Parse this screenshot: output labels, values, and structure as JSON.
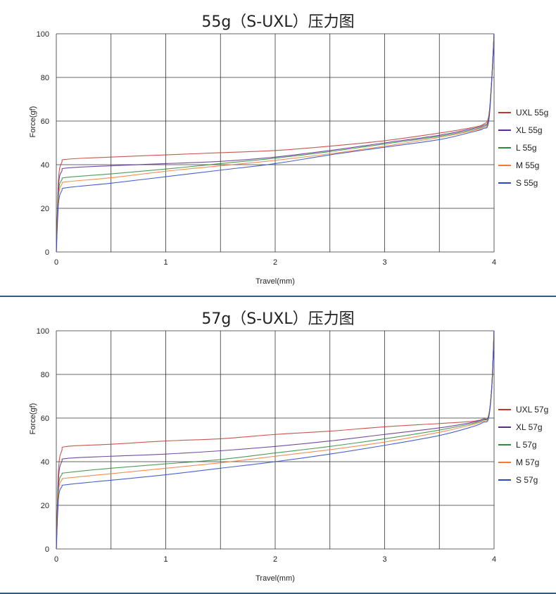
{
  "chart_data": [
    {
      "type": "line",
      "title": "55g（S-UXL）压力图",
      "xlabel": "Travel(mm)",
      "ylabel": "Force(gf)",
      "xlim": [
        0,
        4
      ],
      "ylim": [
        0,
        100
      ],
      "xticks": [
        "0",
        "1",
        "2",
        "3",
        "4"
      ],
      "yticks": [
        "0",
        "20",
        "40",
        "60",
        "80",
        "100"
      ],
      "grid": true,
      "legend_position": "right",
      "series": [
        {
          "name": "UXL 55g",
          "color": "#c0392b",
          "x": [
            0,
            0.02,
            0.05,
            0.1,
            0.5,
            1,
            1.5,
            2,
            2.5,
            3,
            3.5,
            3.8,
            3.9,
            3.95,
            3.98,
            4.0
          ],
          "y": [
            0,
            33,
            41,
            42.5,
            43.5,
            44.5,
            45.5,
            46.5,
            48.5,
            51,
            54.5,
            57,
            58.5,
            62,
            80,
            100
          ]
        },
        {
          "name": "XL 55g",
          "color": "#5b2c91",
          "x": [
            0,
            0.02,
            0.05,
            0.1,
            0.5,
            1,
            1.5,
            2,
            2.5,
            3,
            3.5,
            3.8,
            3.9,
            3.95,
            3.98,
            4.0
          ],
          "y": [
            0,
            30,
            37,
            38.5,
            39.5,
            40.5,
            41.5,
            43.5,
            46.5,
            50,
            53.5,
            56.5,
            58,
            61,
            80,
            100
          ]
        },
        {
          "name": "L 55g",
          "color": "#2e8b3a",
          "x": [
            0,
            0.02,
            0.05,
            0.1,
            0.5,
            1,
            1.5,
            2,
            2.5,
            3,
            3.5,
            3.8,
            3.9,
            3.95,
            3.98,
            4.0
          ],
          "y": [
            0,
            27,
            33,
            34.2,
            35.8,
            38,
            40.5,
            43,
            46,
            49.5,
            53,
            56,
            57.5,
            60.5,
            80,
            100
          ]
        },
        {
          "name": "M 55g",
          "color": "#f07a3a",
          "x": [
            0,
            0.02,
            0.05,
            0.1,
            0.5,
            1,
            1.5,
            2,
            2.5,
            3,
            3.5,
            3.8,
            3.9,
            3.95,
            3.98,
            4.0
          ],
          "y": [
            0,
            25,
            31,
            32.2,
            34,
            37,
            39.5,
            42,
            45,
            48.5,
            52.5,
            55.5,
            57,
            60,
            80,
            100
          ]
        },
        {
          "name": "S 55g",
          "color": "#2a47c9",
          "x": [
            0,
            0.02,
            0.05,
            0.1,
            0.5,
            1,
            1.5,
            2,
            2.5,
            3,
            3.5,
            3.8,
            3.9,
            3.95,
            3.98,
            4.0
          ],
          "y": [
            0,
            22,
            28,
            29.5,
            31.5,
            34.5,
            37.5,
            40.5,
            44.5,
            48,
            51.5,
            55,
            56.5,
            59.5,
            80,
            100
          ]
        }
      ]
    },
    {
      "type": "line",
      "title": "57g（S-UXL）压力图",
      "xlabel": "Travel(mm)",
      "ylabel": "Force(gf)",
      "xlim": [
        0,
        4
      ],
      "ylim": [
        0,
        100
      ],
      "xticks": [
        "0",
        "1",
        "2",
        "3",
        "4"
      ],
      "yticks": [
        "0",
        "20",
        "40",
        "60",
        "80",
        "100"
      ],
      "grid": true,
      "legend_position": "right",
      "series": [
        {
          "name": "UXL 57g",
          "color": "#c0392b",
          "x": [
            0,
            0.02,
            0.05,
            0.1,
            0.5,
            1,
            1.5,
            2,
            2.5,
            3,
            3.5,
            3.8,
            3.9,
            3.95,
            3.98,
            4.0
          ],
          "y": [
            0,
            36,
            45,
            47,
            48,
            49.5,
            50.5,
            52.5,
            54,
            56,
            57.5,
            58.5,
            59.5,
            61,
            75,
            100
          ]
        },
        {
          "name": "XL 57g",
          "color": "#5b2c91",
          "x": [
            0,
            0.02,
            0.05,
            0.1,
            0.5,
            1,
            1.5,
            2,
            2.5,
            3,
            3.5,
            3.8,
            3.9,
            3.95,
            3.98,
            4.0
          ],
          "y": [
            0,
            32,
            40,
            41.5,
            42.5,
            43.5,
            45,
            47,
            49.5,
            52.5,
            55.5,
            58,
            59.5,
            61,
            75,
            100
          ]
        },
        {
          "name": "L 57g",
          "color": "#2e8b3a",
          "x": [
            0,
            0.02,
            0.05,
            0.1,
            0.5,
            1,
            1.5,
            2,
            2.5,
            3,
            3.5,
            3.8,
            3.9,
            3.95,
            3.98,
            4.0
          ],
          "y": [
            0,
            28,
            34,
            35,
            37,
            39,
            41,
            44,
            47,
            50.5,
            54.5,
            57.5,
            59,
            61,
            75,
            100
          ]
        },
        {
          "name": "M 57g",
          "color": "#f07a3a",
          "x": [
            0,
            0.02,
            0.05,
            0.1,
            0.5,
            1,
            1.5,
            2,
            2.5,
            3,
            3.5,
            3.8,
            3.9,
            3.95,
            3.98,
            4.0
          ],
          "y": [
            0,
            26,
            31.5,
            32.5,
            34.5,
            37,
            39.5,
            42.5,
            45.5,
            49,
            53.5,
            57,
            58.5,
            60.5,
            75,
            100
          ]
        },
        {
          "name": "S 57g",
          "color": "#2a47c9",
          "x": [
            0,
            0.02,
            0.05,
            0.1,
            0.5,
            1,
            1.5,
            2,
            2.5,
            3,
            3.5,
            3.8,
            3.9,
            3.95,
            3.98,
            4.0
          ],
          "y": [
            0,
            23,
            28.5,
            29.5,
            31.5,
            34,
            37,
            40,
            43.5,
            47.5,
            52,
            56,
            58,
            60,
            75,
            100
          ]
        }
      ]
    }
  ]
}
